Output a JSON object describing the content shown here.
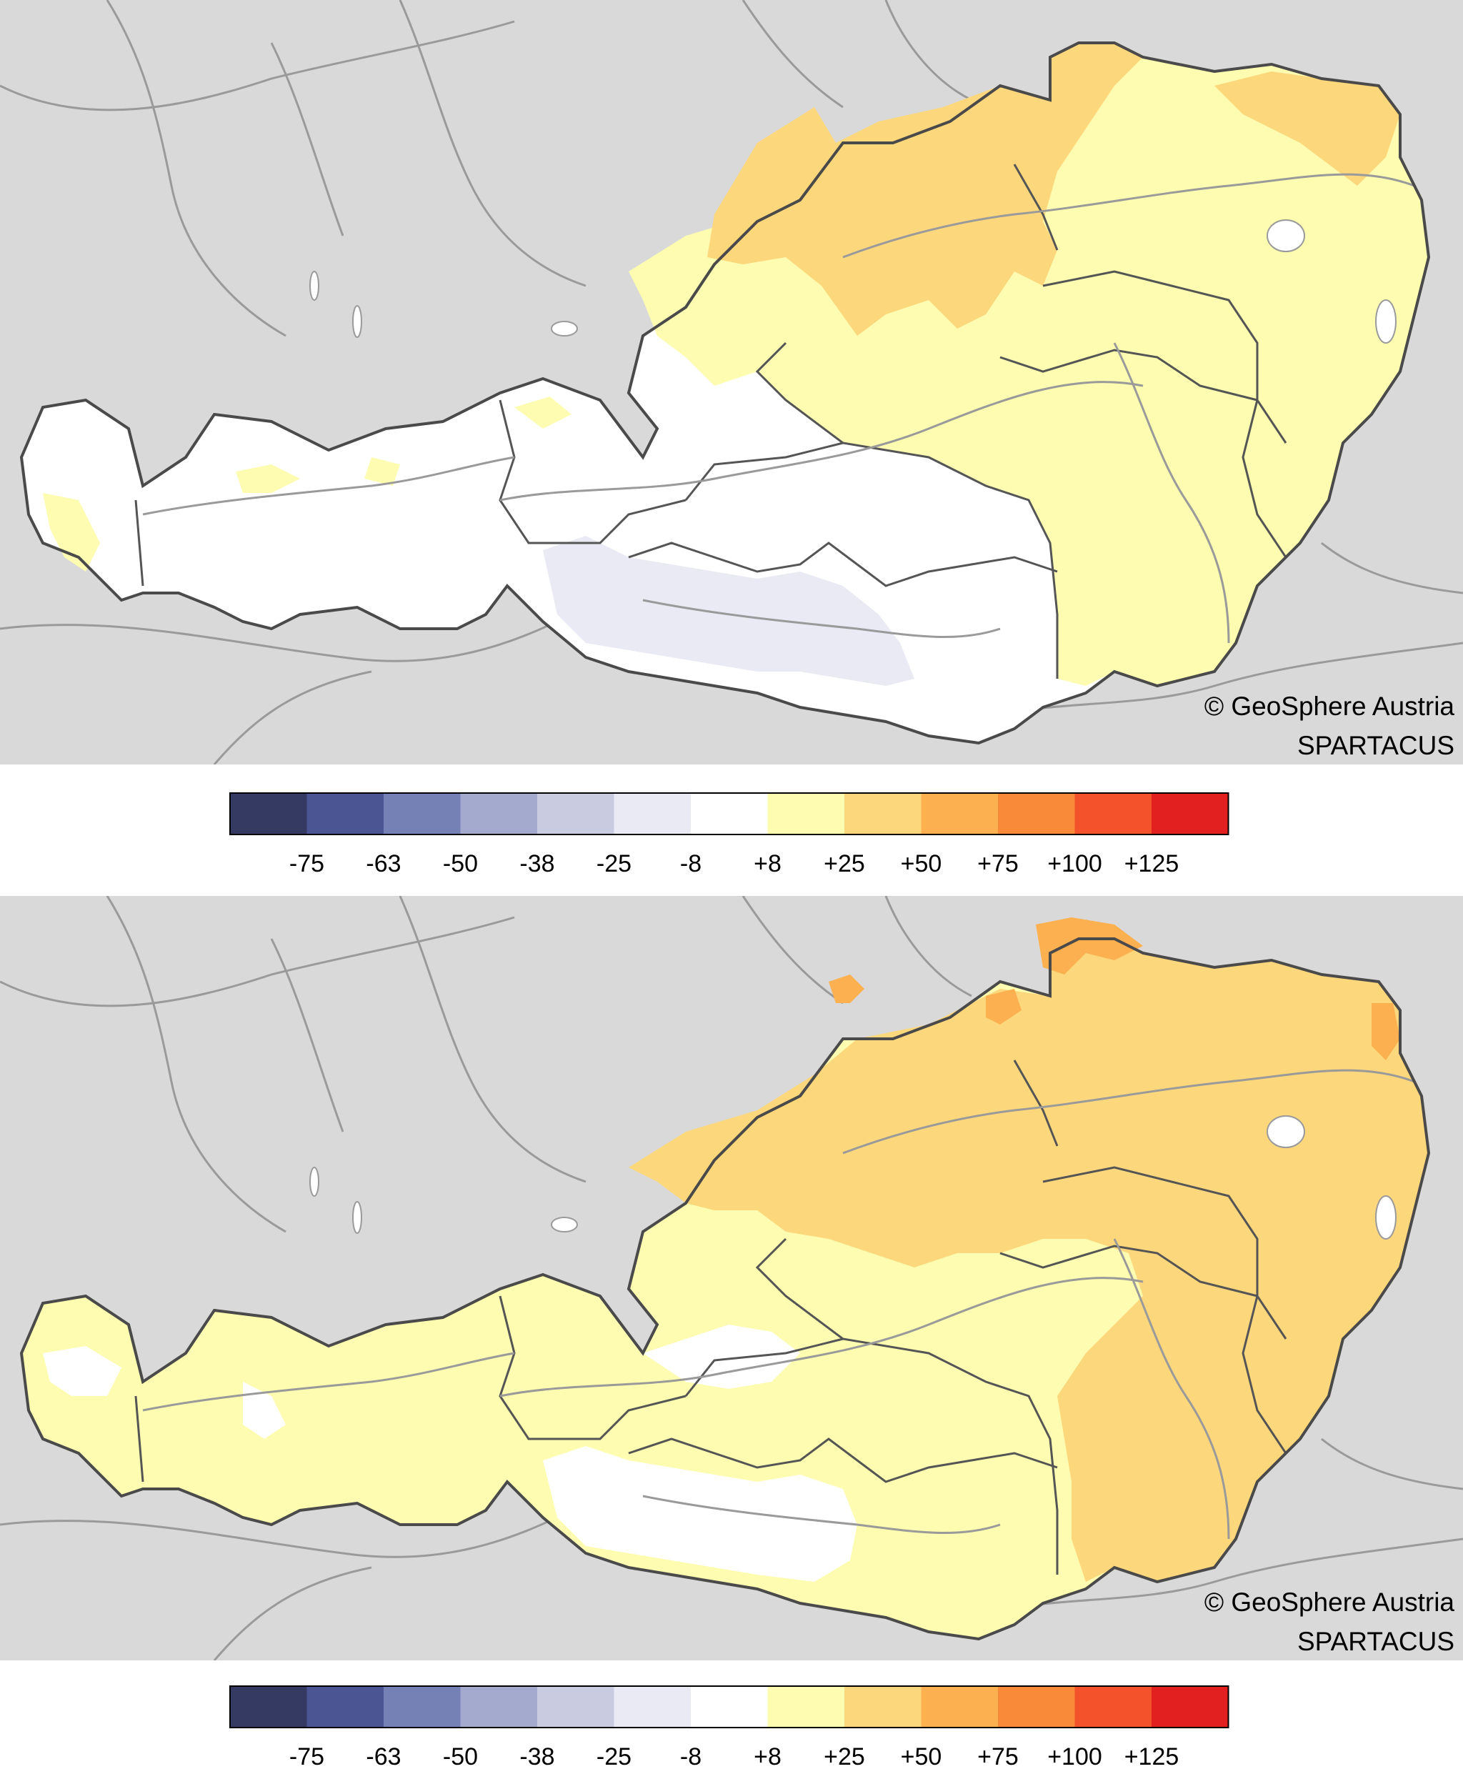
{
  "maps": [
    {
      "id": "top",
      "credit_line1": "© GeoSphere Austria",
      "credit_line2": "SPARTACUS"
    },
    {
      "id": "bottom",
      "credit_line1": "© GeoSphere Austria",
      "credit_line2": "SPARTACUS"
    }
  ],
  "legend": {
    "tick_labels": [
      "-75",
      "-63",
      "-50",
      "-38",
      "-25",
      "-8",
      "+8",
      "+25",
      "+50",
      "+75",
      "+100",
      "+125"
    ],
    "colors": [
      "#353a63",
      "#4b5593",
      "#7580b4",
      "#a4a9ce",
      "#c9cce0",
      "#e9eaf3",
      "#ffffff",
      "#fdfcb0",
      "#fdd77b",
      "#fcb050",
      "#f98a3a",
      "#f4522b",
      "#e1201f"
    ]
  },
  "region_colors": {
    "background_land": "#d9d9d9",
    "water": "#ffffff",
    "rivers": "#9a9a9a",
    "borders": "#4a4a4a"
  }
}
